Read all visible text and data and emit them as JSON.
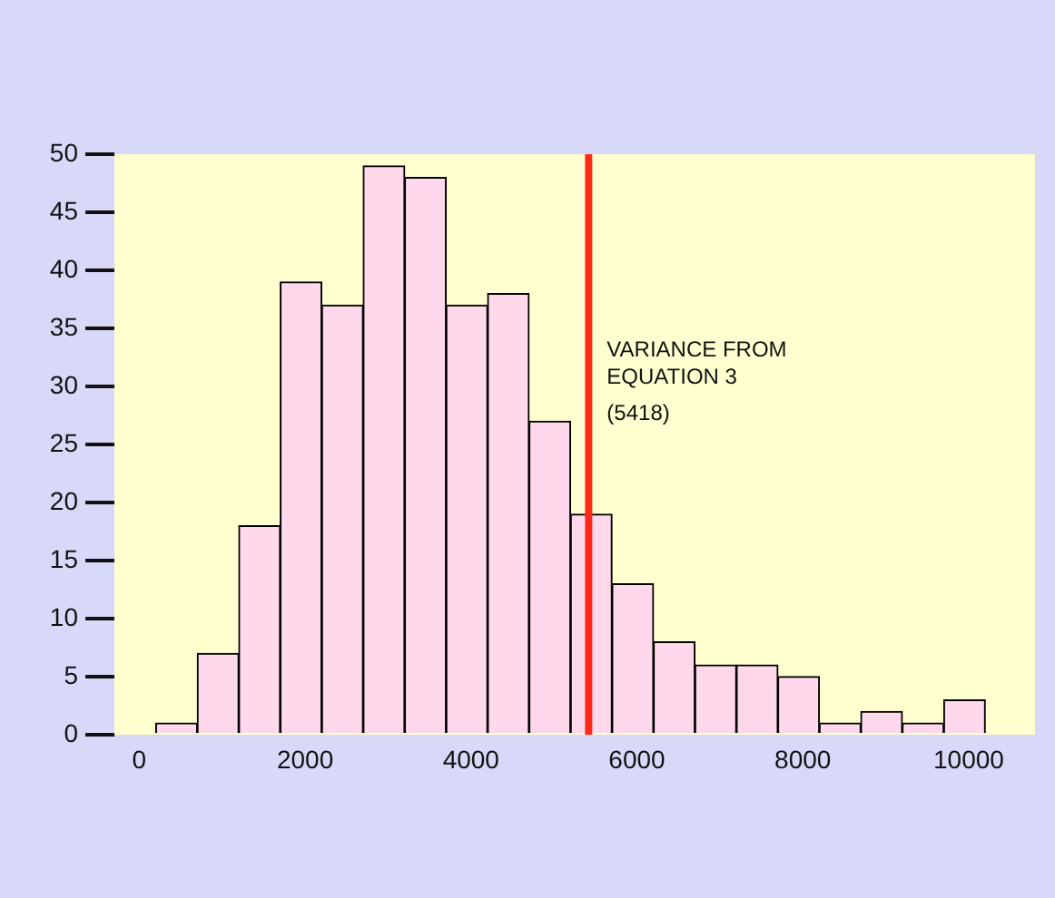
{
  "chart_data": {
    "type": "histogram",
    "bins": [
      200,
      700,
      1200,
      1700,
      2200,
      2700,
      3200,
      3700,
      4200,
      4700,
      5200,
      5700,
      6200,
      6700,
      7200,
      7700,
      8200,
      8700,
      9200,
      9700,
      10200
    ],
    "values": [
      1,
      7,
      18,
      39,
      37,
      49,
      48,
      37,
      38,
      27,
      19,
      13,
      8,
      6,
      6,
      5,
      1,
      2,
      1,
      3
    ],
    "color": "#ffd8ec",
    "xlim": [
      -300,
      10800
    ],
    "xticks": [
      0,
      2000,
      4000,
      6000,
      8000,
      10000
    ],
    "ylim": [
      0,
      50
    ],
    "yticks": [
      0,
      5,
      10,
      15,
      20,
      25,
      30,
      35,
      40,
      45,
      50
    ],
    "grid": false,
    "legend": false,
    "ref_lines": [
      {
        "axis": "x",
        "value": 5418,
        "label": "VARIANCE FROM EQUATION 3 (5418)",
        "color": "#ff2a1a"
      }
    ]
  }
}
